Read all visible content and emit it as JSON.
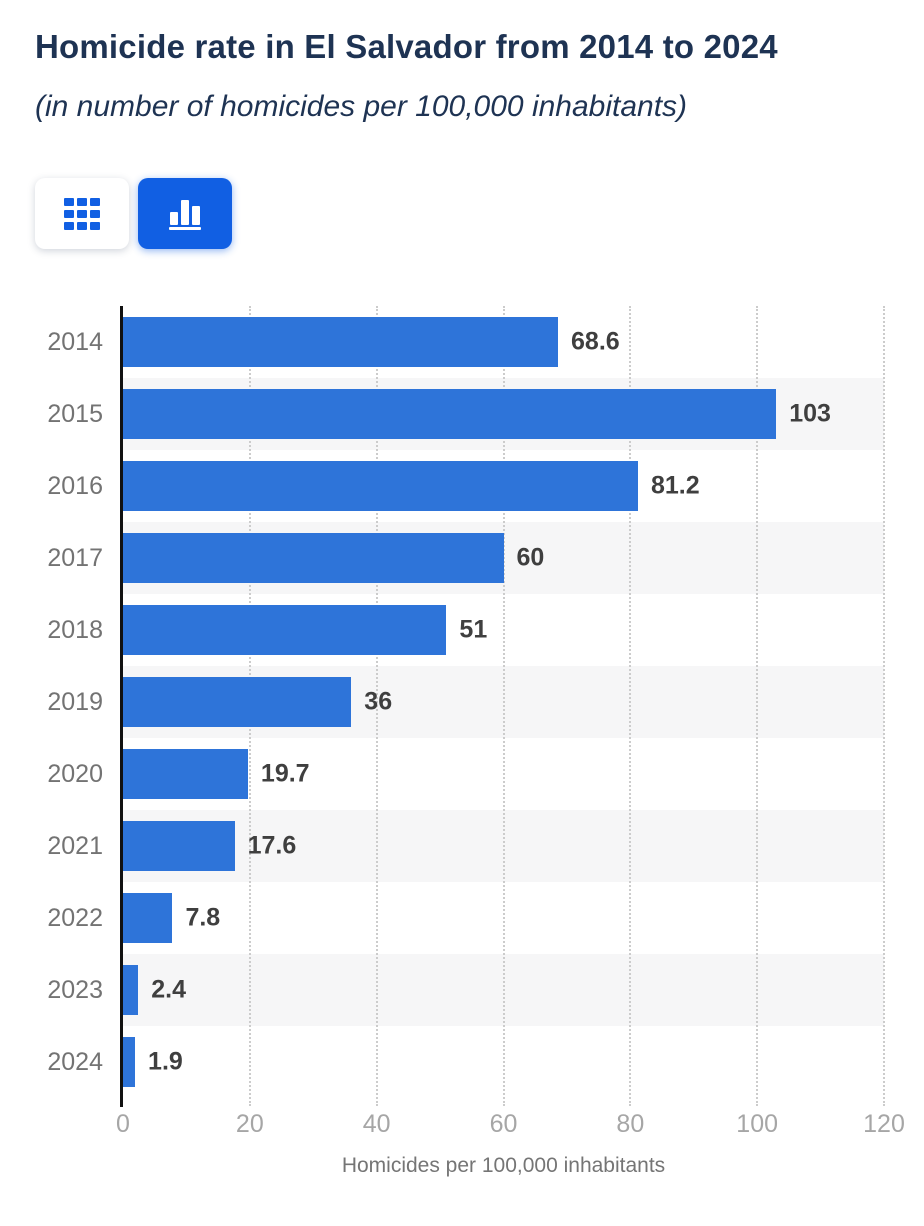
{
  "header": {
    "title": "Homicide rate in El Salvador from 2014 to 2024",
    "subtitle": "(in number of homicides per 100,000 inhabitants)"
  },
  "toolbar": {
    "buttons": [
      {
        "id": "table-view",
        "icon": "grid-icon",
        "selected": false
      },
      {
        "id": "chart-view",
        "icon": "bar-chart-icon",
        "selected": true
      }
    ]
  },
  "colors": {
    "bar": "#2e74d9",
    "accent": "#115fe3",
    "row_stripe": "#f6f6f7",
    "heading_text": "#1e3353",
    "axis_line": "#111111",
    "gridline": "#cccccc",
    "value_label": "#3f3f3f",
    "year_label": "#737373",
    "tick_label": "#a6a6a6"
  },
  "chart_data": {
    "type": "bar",
    "orientation": "horizontal",
    "title": "Homicide rate in El Salvador from 2014 to 2024",
    "subtitle": "(in number of homicides per 100,000 inhabitants)",
    "categories": [
      "2014",
      "2015",
      "2016",
      "2017",
      "2018",
      "2019",
      "2020",
      "2021",
      "2022",
      "2023",
      "2024"
    ],
    "values": [
      68.6,
      103,
      81.2,
      60,
      51,
      36,
      19.7,
      17.6,
      7.8,
      2.4,
      1.9
    ],
    "value_labels": [
      "68.6",
      "103",
      "81.2",
      "60",
      "51",
      "36",
      "19.7",
      "17.6",
      "7.8",
      "2.4",
      "1.9"
    ],
    "xlabel": "Homicides per 100,000 inhabitants",
    "ylabel": "",
    "xlim": [
      0,
      120
    ],
    "xticks": [
      0,
      20,
      40,
      60,
      80,
      100,
      120
    ],
    "grid": "vertical-dotted",
    "legend": "none",
    "row_striping": "alternate starting at second row"
  }
}
